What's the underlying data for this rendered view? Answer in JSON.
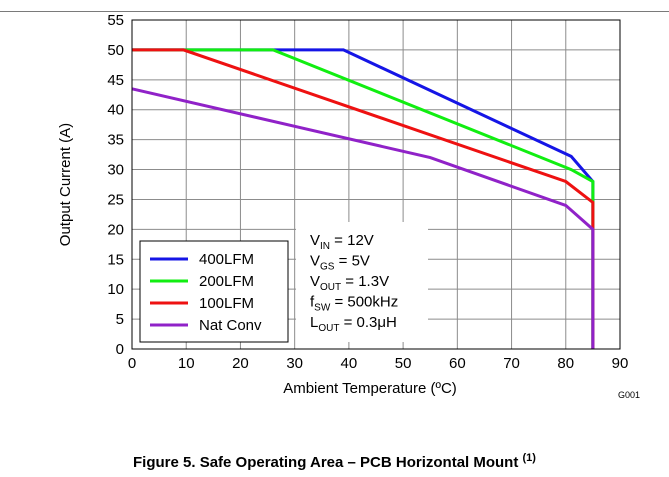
{
  "chart_data": {
    "type": "line",
    "xlabel": "Ambient Temperature (ºC)",
    "ylabel": "Output Current (A)",
    "xlim": [
      0,
      90
    ],
    "ylim": [
      0,
      55
    ],
    "xticks": [
      "0",
      "10",
      "20",
      "30",
      "40",
      "50",
      "60",
      "70",
      "80",
      "90"
    ],
    "yticks": [
      "0",
      "5",
      "10",
      "15",
      "20",
      "25",
      "30",
      "35",
      "40",
      "45",
      "50",
      "55"
    ],
    "grid": true,
    "legend_position": "bottom-left",
    "series": [
      {
        "name": "400LFM",
        "color": "#1515e6",
        "points": [
          [
            0,
            50
          ],
          [
            39,
            50
          ],
          [
            81,
            32.2
          ],
          [
            85,
            28
          ],
          [
            85,
            0
          ]
        ]
      },
      {
        "name": "200LFM",
        "color": "#11ee11",
        "points": [
          [
            0,
            50
          ],
          [
            26,
            50
          ],
          [
            81,
            30
          ],
          [
            85,
            28
          ],
          [
            85,
            0
          ]
        ]
      },
      {
        "name": "100LFM",
        "color": "#ee1111",
        "points": [
          [
            0,
            50
          ],
          [
            9.5,
            50
          ],
          [
            80,
            28
          ],
          [
            85,
            24.5
          ],
          [
            85,
            0
          ]
        ]
      },
      {
        "name": "Nat Conv",
        "color": "#9022c8",
        "points": [
          [
            0,
            43.5
          ],
          [
            55,
            32
          ],
          [
            80,
            24
          ],
          [
            85,
            20
          ],
          [
            85,
            0
          ]
        ]
      }
    ],
    "annotation": {
      "lines": [
        {
          "main": "V",
          "sub": "IN",
          "rest": " = 12V"
        },
        {
          "main": "V",
          "sub": "GS",
          "rest": " = 5V"
        },
        {
          "main": "V",
          "sub": "OUT",
          "rest": " = 1.3V"
        },
        {
          "main": "f",
          "sub": "SW",
          "rest": " = 500kHz"
        },
        {
          "main": "L",
          "sub": "OUT",
          "rest": " = 0.3μH"
        }
      ]
    },
    "figure_code": "G001"
  },
  "caption": {
    "text": "Figure 5. Safe Operating Area – PCB Horizontal Mount",
    "footnote": "(1)"
  }
}
